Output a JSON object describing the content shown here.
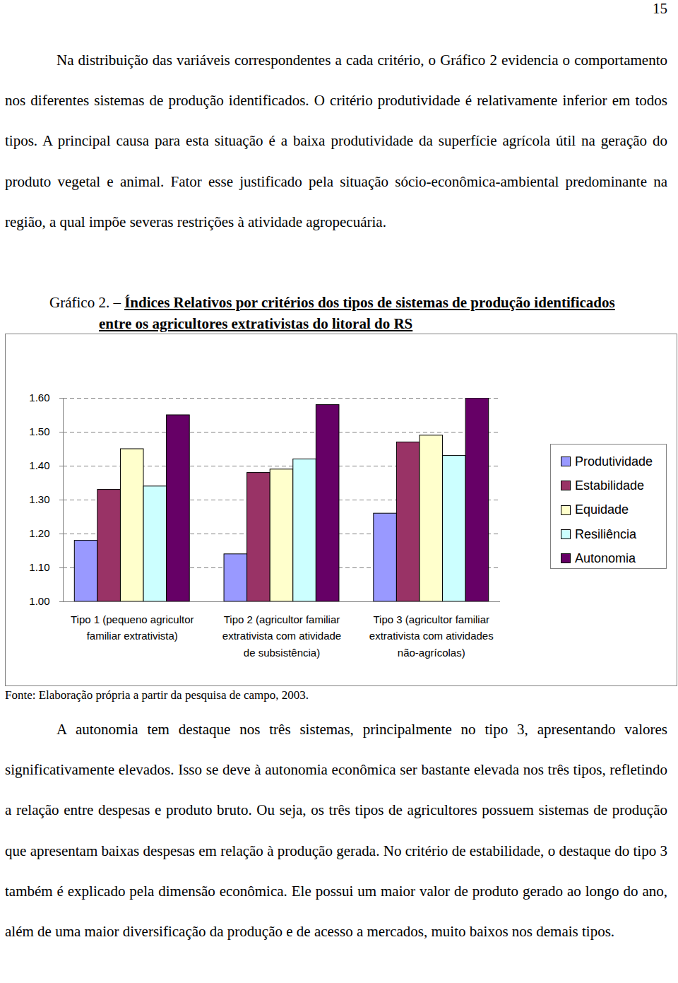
{
  "page_number": "15",
  "paragraphs_before": [
    "Na distribuição das variáveis correspondentes a cada critério, o Gráfico 2 evidencia o comportamento nos diferentes sistemas de produção identificados. O critério produtividade é relativamente inferior em todos tipos. A principal causa para esta situação é a baixa produtividade da superfície agrícola útil na geração do produto vegetal e animal. Fator esse justificado pela situação sócio-econômica-ambiental predominante na região, a qual impõe severas restrições à atividade agropecuária."
  ],
  "figure": {
    "label": "Gráfico 2. –",
    "title": "Índices Relativos por critérios dos tipos de sistemas de produção identificados entre os agricultores extrativistas do litoral do RS",
    "source": "Fonte: Elaboração própria a partir da pesquisa de campo, 2003."
  },
  "paragraphs_after": [
    "A autonomia tem destaque nos três sistemas, principalmente no tipo 3, apresentando valores significativamente elevados. Isso se deve à autonomia econômica ser bastante elevada nos três tipos, refletindo a relação entre despesas e produto bruto. Ou seja, os três tipos de agricultores possuem sistemas de produção que apresentam baixas despesas em relação à produção gerada. No critério de estabilidade, o destaque do tipo 3 também é explicado pela dimensão econômica. Ele possui um maior valor de produto gerado ao longo do ano, além de uma maior diversificação da produção e de acesso a mercados, muito baixos nos demais tipos."
  ],
  "chart_data": {
    "type": "bar",
    "categories": [
      "Tipo 1 (pequeno agricultor familiar extrativista)",
      "Tipo 2 (agricultor familiar extrativista com atividade de subsistência)",
      "Tipo 3 (agricultor familiar extrativista com atividades não-agrícolas)"
    ],
    "series": [
      {
        "name": "Produtividade",
        "color": "#9999ff",
        "values": [
          1.18,
          1.14,
          1.26
        ]
      },
      {
        "name": "Estabilidade",
        "color": "#993366",
        "values": [
          1.33,
          1.38,
          1.47
        ]
      },
      {
        "name": "Equidade",
        "color": "#ffffcc",
        "values": [
          1.45,
          1.39,
          1.49
        ]
      },
      {
        "name": "Resiliência",
        "color": "#ccffff",
        "values": [
          1.34,
          1.42,
          1.43
        ]
      },
      {
        "name": "Autonomia",
        "color": "#660066",
        "values": [
          1.55,
          1.58,
          1.6
        ]
      }
    ],
    "ylim": [
      1.0,
      1.6
    ],
    "yticks": [
      {
        "value": 1.0,
        "label": "1.00"
      },
      {
        "value": 1.1,
        "label": "1.10"
      },
      {
        "value": 1.2,
        "label": "1.20"
      },
      {
        "value": 1.3,
        "label": "1.30"
      },
      {
        "value": 1.4,
        "label": "1.40"
      },
      {
        "value": 1.5,
        "label": "1.50"
      },
      {
        "value": 1.6,
        "label": "1.60"
      }
    ],
    "grid": true,
    "legend": "right"
  }
}
